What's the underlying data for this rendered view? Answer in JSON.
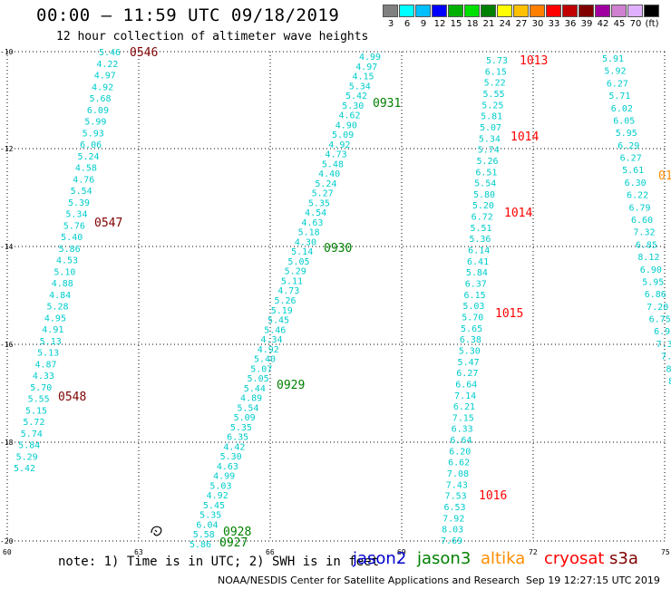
{
  "title": "00:00 – 11:59 UTC 09/18/2019",
  "subtitle": "12 hour collection of altimeter wave heights",
  "legend": {
    "colors": [
      "#808080",
      "#00ffff",
      "#00bfff",
      "#0000ff",
      "#00b000",
      "#00e000",
      "#008000",
      "#ffff00",
      "#ffc000",
      "#ff8000",
      "#ff0000",
      "#c00000",
      "#800000",
      "#a000a0",
      "#d080d0",
      "#e0b0ff",
      "#000000"
    ],
    "labels": [
      "3",
      "6",
      "9",
      "12",
      "15",
      "18",
      "21",
      "24",
      "27",
      "30",
      "33",
      "36",
      "39",
      "42",
      "45",
      "70",
      "(ft)"
    ]
  },
  "axes": {
    "lon_ticks": [
      "60",
      "63",
      "66",
      "69",
      "72",
      "75"
    ],
    "lat_ticks": [
      "-10",
      "-12",
      "-14",
      "-16",
      "-18",
      "-20"
    ]
  },
  "track_color": "#00cccc",
  "time_colors": {
    "jason3": "#008000",
    "cryosat": "#ff0000",
    "s3a": "#800000"
  },
  "tracks": [
    {
      "name": "track-1",
      "values": [
        "5.46",
        "4.22",
        "4.97",
        "4.92",
        "5.68",
        "6.09",
        "5.99",
        "5.93",
        "6.06",
        "5.24",
        "4.58",
        "4.76",
        "5.54",
        "5.39",
        "5.34",
        "5.76",
        "5.40",
        "5.86",
        "4.53",
        "5.10",
        "4.88",
        "4.84",
        "5.28",
        "4.95",
        "4.91",
        "5.13",
        "5.13",
        "4.87",
        "4.33",
        "5.70",
        "5.55",
        "5.15",
        "5.72",
        "5.74",
        "5.84",
        "5.29",
        "5.42"
      ]
    },
    {
      "name": "track-2",
      "values": [
        "4.99",
        "4.97",
        "4.15",
        "5.34",
        "5.42",
        "5.30",
        "4.62",
        "4.90",
        "5.09",
        "4.92",
        "4.73",
        "5.48",
        "4.40",
        "5.24",
        "5.27",
        "5.35",
        "4.54",
        "4.63",
        "5.18",
        "4.30",
        "5.14",
        "5.05",
        "5.29",
        "5.11",
        "4.73",
        "5.26",
        "5.19",
        "5.45",
        "5.46",
        "4.34",
        "4.92",
        "5.40",
        "5.07",
        "5.05",
        "5.44",
        "4.89",
        "5.54",
        "5.09",
        "5.35",
        "6.35",
        "4.42",
        "5.30",
        "4.63",
        "4.99",
        "5.03",
        "4.92",
        "5.45",
        "5.35",
        "6.04",
        "5.58",
        "5.86"
      ]
    },
    {
      "name": "track-3",
      "values": [
        "5.73",
        "6.15",
        "5.22",
        "5.55",
        "5.25",
        "5.81",
        "5.07",
        "5.34",
        "5.74",
        "5.26",
        "6.51",
        "5.54",
        "5.80",
        "5.20",
        "6.72",
        "5.51",
        "5.36",
        "6.14",
        "6.41",
        "5.84",
        "6.37",
        "6.15",
        "5.03",
        "5.70",
        "5.65",
        "6.38",
        "5.30",
        "5.47",
        "6.27",
        "6.64",
        "7.14",
        "6.21",
        "7.15",
        "6.33",
        "6.64",
        "6.20",
        "6.62",
        "7.08",
        "7.43",
        "7.53",
        "6.53",
        "7.92",
        "8.03",
        "7.69"
      ]
    },
    {
      "name": "track-4",
      "values": [
        "5.91",
        "5.92",
        "6.27",
        "5.71",
        "6.02",
        "6.05",
        "5.95",
        "6.29",
        "6.27",
        "5.61",
        "6.30",
        "6.22",
        "6.79",
        "6.60",
        "7.32",
        "6.85",
        "8.12",
        "6.90",
        "5.95",
        "6.86",
        "7.20",
        "6.75",
        "6.9",
        "7.3",
        "7.",
        "8",
        "8"
      ]
    }
  ],
  "time_labels": [
    {
      "text": "0546",
      "sat": "s3a"
    },
    {
      "text": "0547",
      "sat": "s3a"
    },
    {
      "text": "0548",
      "sat": "s3a"
    },
    {
      "text": "0931",
      "sat": "jason3"
    },
    {
      "text": "0930",
      "sat": "jason3"
    },
    {
      "text": "0929",
      "sat": "jason3"
    },
    {
      "text": "0928",
      "sat": "jason3"
    },
    {
      "text": "0927",
      "sat": "jason3"
    },
    {
      "text": "1013",
      "sat": "cryosat"
    },
    {
      "text": "1014",
      "sat": "cryosat"
    },
    {
      "text": "1014",
      "sat": "cryosat"
    },
    {
      "text": "1015",
      "sat": "cryosat"
    },
    {
      "text": "1016",
      "sat": "cryosat"
    },
    {
      "text": "01",
      "sat": "altika"
    }
  ],
  "note": "note: 1) Time is in UTC; 2) SWH is in feet",
  "satellites": [
    {
      "name": "jason2",
      "color": "#0000cc"
    },
    {
      "name": "jason3",
      "color": "#008000"
    },
    {
      "name": "altika",
      "color": "#ff8c00"
    },
    {
      "name": "cryosat",
      "color": "#ff0000"
    },
    {
      "name": "s3a",
      "color": "#800000"
    }
  ],
  "credit": "NOAA/NESDIS Center for Satellite Applications and Research",
  "timestamp": "Sep 19 12:27:15 UTC 2019"
}
